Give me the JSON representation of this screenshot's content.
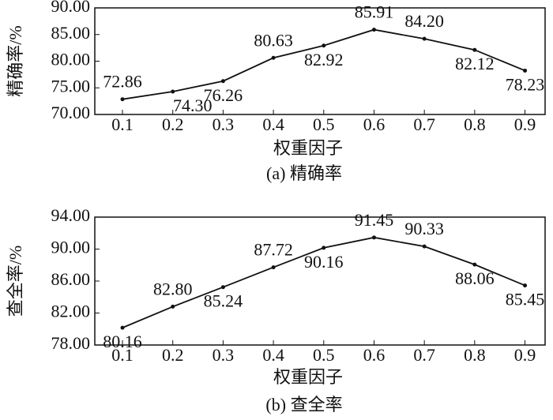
{
  "chart_data": [
    {
      "type": "line",
      "caption": "(a) 精确率",
      "x_label": "权重因子",
      "y_label": "精确率/%",
      "x": [
        0.1,
        0.2,
        0.3,
        0.4,
        0.5,
        0.6,
        0.7,
        0.8,
        0.9
      ],
      "values": [
        72.86,
        74.3,
        76.26,
        80.63,
        82.92,
        85.91,
        84.2,
        82.12,
        78.23
      ],
      "value_labels": [
        "72.86",
        "74.30",
        "76.26",
        "80.63",
        "82.92",
        "85.91",
        "84.20",
        "82.12",
        "78.23"
      ],
      "color": "#111111",
      "xlim": [
        0.045,
        0.94
      ],
      "xticks": [
        0.1,
        0.2,
        0.3,
        0.4,
        0.5,
        0.6,
        0.7,
        0.8,
        0.9
      ],
      "ylim": [
        70,
        90
      ],
      "yticks": [
        {
          "value": 70,
          "label": "70.00"
        },
        {
          "value": 75,
          "label": "75.00"
        },
        {
          "value": 80,
          "label": "80.00"
        },
        {
          "value": 85,
          "label": "85.00"
        },
        {
          "value": 90,
          "label": "90.00"
        }
      ]
    },
    {
      "type": "line",
      "caption": "(b) 查全率",
      "x_label": "权重因子",
      "y_label": "查全率/%",
      "x": [
        0.1,
        0.2,
        0.3,
        0.4,
        0.5,
        0.6,
        0.7,
        0.8,
        0.9
      ],
      "values": [
        80.16,
        82.8,
        85.24,
        87.72,
        90.16,
        91.45,
        90.33,
        88.06,
        85.45
      ],
      "value_labels": [
        "80.16",
        "82.80",
        "85.24",
        "87.72",
        "90.16",
        "91.45",
        "90.33",
        "88.06",
        "85.45"
      ],
      "color": "#111111",
      "xlim": [
        0.045,
        0.94
      ],
      "xticks": [
        0.1,
        0.2,
        0.3,
        0.4,
        0.5,
        0.6,
        0.7,
        0.8,
        0.9
      ],
      "ylim": [
        78,
        94
      ],
      "yticks": [
        {
          "value": 78,
          "label": "78.00"
        },
        {
          "value": 82,
          "label": "82.00"
        },
        {
          "value": 86,
          "label": "86.00"
        },
        {
          "value": 90,
          "label": "90.00"
        },
        {
          "value": 94,
          "label": "94.00"
        }
      ]
    }
  ]
}
